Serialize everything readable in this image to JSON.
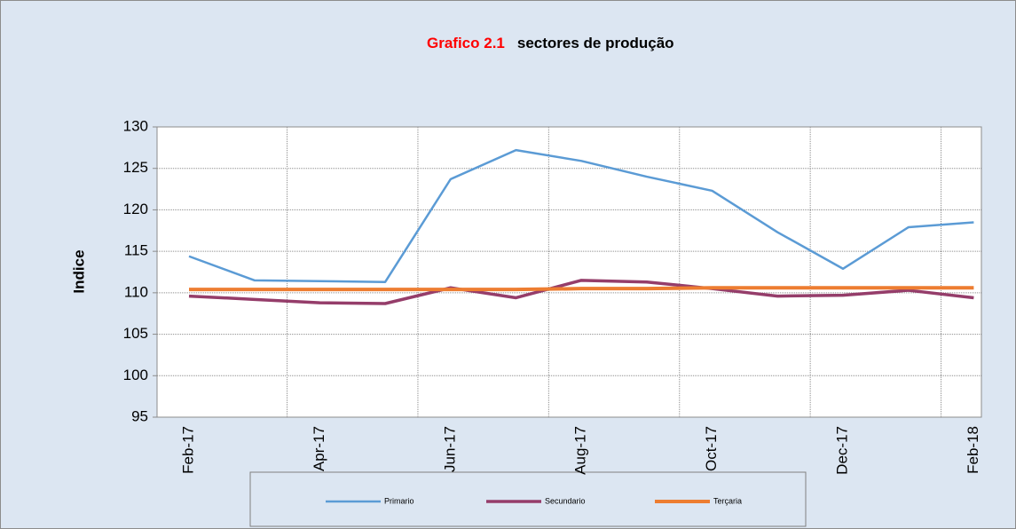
{
  "chart_data": {
    "type": "line",
    "title_number": "Grafico 2.1",
    "title": "sectores de produção",
    "y_label": "Indice",
    "categories": [
      "Feb-17",
      null,
      "Apr-17",
      null,
      "Jun-17",
      null,
      "Aug-17",
      null,
      "Oct-17",
      null,
      "Dec-17",
      null,
      "Feb-18"
    ],
    "series": [
      {
        "name": "Primario",
        "color": "#5b9bd5",
        "values": [
          114.4,
          111.5,
          111.4,
          111.3,
          123.7,
          127.2,
          125.9,
          124.0,
          122.3,
          117.3,
          112.9,
          117.9,
          118.5
        ]
      },
      {
        "name": "Secundario",
        "color": "#953d6a",
        "values": [
          109.6,
          109.2,
          108.8,
          108.7,
          110.6,
          109.4,
          111.5,
          111.3,
          110.5,
          109.6,
          109.7,
          110.3,
          109.4
        ]
      },
      {
        "name": "Terçaria",
        "color": "#ed7d31",
        "values": [
          110.4,
          110.4,
          110.4,
          110.4,
          110.4,
          110.4,
          110.5,
          110.5,
          110.6,
          110.6,
          110.6,
          110.6,
          110.6
        ]
      }
    ],
    "ylim": [
      95,
      130
    ],
    "yticks": [
      95,
      100,
      105,
      110,
      115,
      120,
      125,
      130
    ],
    "grid": true
  }
}
